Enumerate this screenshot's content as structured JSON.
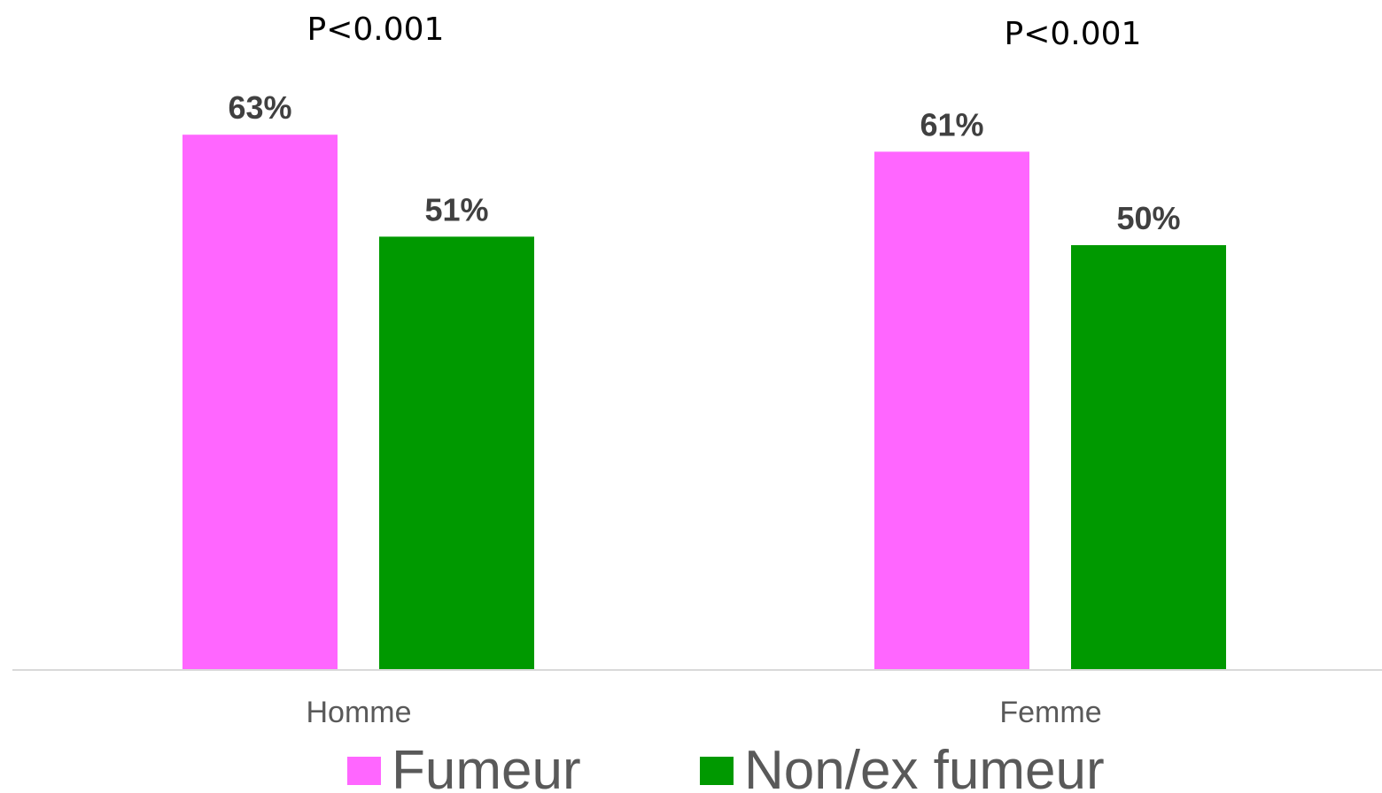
{
  "chart_data": {
    "type": "bar",
    "categories": [
      "Homme",
      "Femme"
    ],
    "series": [
      {
        "name": "Fumeur",
        "color": "#ff66ff",
        "values": [
          63,
          61
        ],
        "labels": [
          "63%",
          "61%"
        ]
      },
      {
        "name": "Non/ex fumeur",
        "color": "#009900",
        "values": [
          51,
          50
        ],
        "labels": [
          "51%",
          "50%"
        ]
      }
    ],
    "annotations": [
      "P<0.001",
      "P<0.001"
    ],
    "ylim": [
      0,
      100
    ],
    "grid": false,
    "legend_position": "bottom"
  }
}
